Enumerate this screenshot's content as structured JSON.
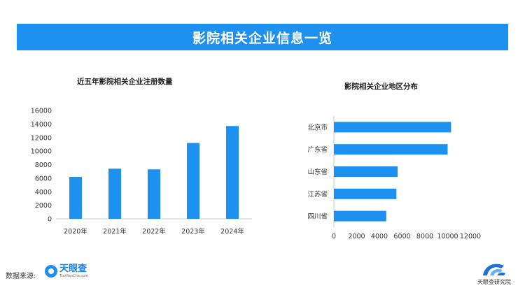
{
  "banner": {
    "title": "影院相关企业信息一览"
  },
  "chart_data": [
    {
      "type": "bar",
      "title": "近五年影院相关企业注册数量",
      "categories": [
        "2020年",
        "2021年",
        "2022年",
        "2023年",
        "2024年"
      ],
      "values": [
        6200,
        7400,
        7300,
        11200,
        13700
      ],
      "ylim": [
        0,
        16000
      ],
      "yticks": [
        0,
        2000,
        4000,
        6000,
        8000,
        10000,
        12000,
        14000,
        16000
      ],
      "xlabel": "",
      "ylabel": "",
      "color": "#1e90f0",
      "grid": false
    },
    {
      "type": "bar",
      "orientation": "horizontal",
      "title": "影院相关企业地区分布",
      "categories": [
        "北京市",
        "广东省",
        "山东省",
        "江苏省",
        "四川省"
      ],
      "values": [
        10300,
        10000,
        5600,
        5500,
        4600
      ],
      "xlim": [
        0,
        12000
      ],
      "xticks": [
        0,
        2000,
        4000,
        6000,
        8000,
        10000,
        12000
      ],
      "xlabel": "",
      "ylabel": "",
      "color": "#1e90f0",
      "grid": false
    }
  ],
  "footer": {
    "source_label": "数据来源:",
    "source_logo": {
      "name": "天眼查",
      "sub": "TianYanCha.com",
      "icon": "tianyancha-logo-icon"
    },
    "brand_logo": {
      "name": "天眼查研究院",
      "icon": "research-institute-logo-icon"
    }
  }
}
